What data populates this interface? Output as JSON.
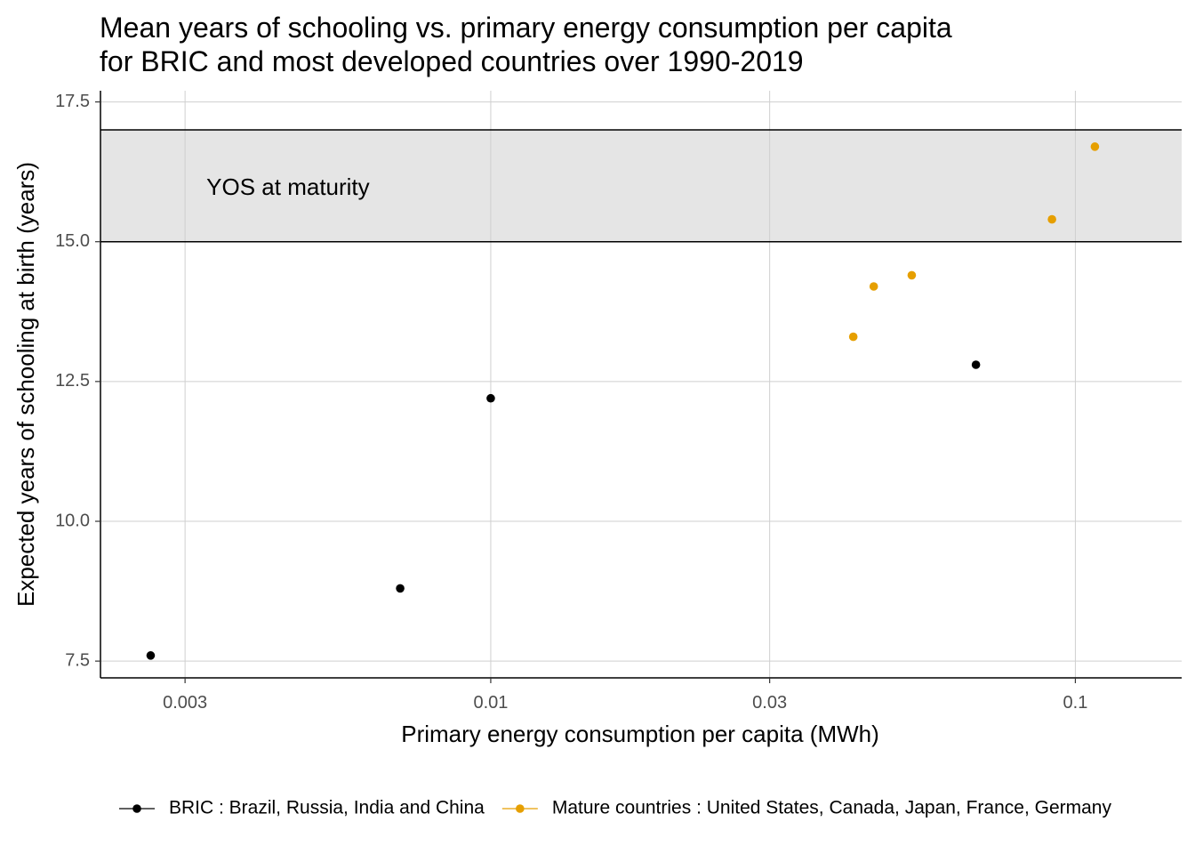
{
  "chart_data": {
    "type": "scatter",
    "title": "Mean years of schooling vs. primary energy consumption per capita",
    "subtitle": "for BRIC and most developed countries over 1990-2019",
    "xlabel": "Primary energy consumption per capita (MWh)",
    "ylabel": "Expected years of schooling at birth (years)",
    "x_scale": "log10",
    "xlim": [
      0.00215,
      0.152
    ],
    "ylim": [
      7.2,
      17.7
    ],
    "x_ticks": [
      {
        "value": 0.003,
        "label": "0.003"
      },
      {
        "value": 0.01,
        "label": "0.01"
      },
      {
        "value": 0.03,
        "label": "0.03"
      },
      {
        "value": 0.1,
        "label": "0.1"
      }
    ],
    "y_ticks": [
      {
        "value": 7.5,
        "label": "7.5"
      },
      {
        "value": 10.0,
        "label": "10.0"
      },
      {
        "value": 12.5,
        "label": "12.5"
      },
      {
        "value": 15.0,
        "label": "15.0"
      },
      {
        "value": 17.5,
        "label": "17.5"
      }
    ],
    "grid": true,
    "band": {
      "ymin": 15.0,
      "ymax": 17.0,
      "label": "YOS at maturity",
      "label_x": 0.0045,
      "label_y": 15.95,
      "color": "#e5e5e5"
    },
    "legend_position": "bottom",
    "series": [
      {
        "name": "BRIC : Brazil, Russia, India and China",
        "color": "#000000",
        "points": [
          {
            "x": 0.00262,
            "y": 7.6
          },
          {
            "x": 0.007,
            "y": 8.8
          },
          {
            "x": 0.01,
            "y": 12.2
          },
          {
            "x": 0.0676,
            "y": 12.8
          }
        ]
      },
      {
        "name": "Mature countries : United States, Canada, Japan, France, Germany",
        "color": "#E69F00",
        "points": [
          {
            "x": 0.0417,
            "y": 13.3
          },
          {
            "x": 0.0452,
            "y": 14.2
          },
          {
            "x": 0.0525,
            "y": 14.4
          },
          {
            "x": 0.0912,
            "y": 15.4
          },
          {
            "x": 0.108,
            "y": 16.7
          }
        ]
      }
    ]
  }
}
